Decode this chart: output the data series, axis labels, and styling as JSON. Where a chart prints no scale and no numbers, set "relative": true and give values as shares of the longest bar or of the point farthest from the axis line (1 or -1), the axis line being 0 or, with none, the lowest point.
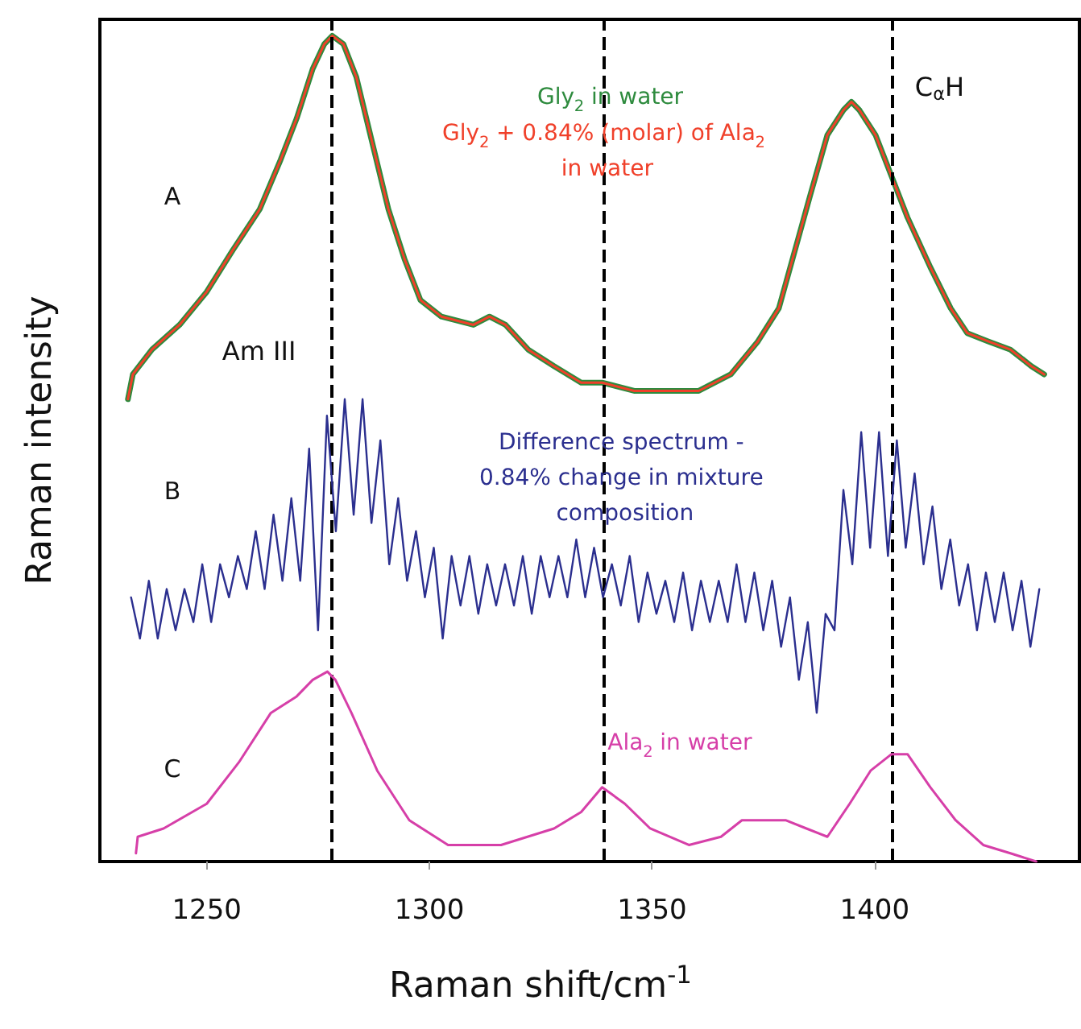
{
  "chart_data": {
    "type": "line",
    "relative": true,
    "xlabel": "Raman shift/cm$^{-1}$",
    "ylabel": "Raman intensity",
    "xlim": [
      1226,
      1446
    ],
    "xticks": [
      1250,
      1300,
      1350,
      1400
    ],
    "grid": false,
    "legend": false,
    "marker": "none",
    "series": [
      {
        "name": "Gly$_{2}$ in water",
        "color": "#2e8b3e",
        "x": [
          1232.3,
          1233.4,
          1237.7,
          1243.9,
          1250,
          1255.8,
          1261.9,
          1266.6,
          1270.2,
          1273.8,
          1276.4,
          1278.2,
          1280.7,
          1283.6,
          1287.2,
          1290.8,
          1294.4,
          1298,
          1302.7,
          1309.9,
          1313.5,
          1317.1,
          1322.2,
          1328,
          1334.1,
          1338.8,
          1346,
          1352.2,
          1360.5,
          1367.7,
          1373.8,
          1378.5,
          1382.1,
          1385.7,
          1389.4,
          1393,
          1394.8,
          1396.6,
          1400.2,
          1403.8,
          1407.4,
          1412.5,
          1417.1,
          1420.8,
          1425.5,
          1430.5,
          1435.2,
          1438.1
        ],
        "values": [
          0.56,
          0.59,
          0.62,
          0.65,
          0.69,
          0.74,
          0.79,
          0.85,
          0.9,
          0.96,
          0.99,
          1,
          0.99,
          0.95,
          0.87,
          0.79,
          0.73,
          0.68,
          0.66,
          0.65,
          0.66,
          0.65,
          0.62,
          0.6,
          0.58,
          0.58,
          0.57,
          0.57,
          0.57,
          0.59,
          0.63,
          0.67,
          0.74,
          0.81,
          0.88,
          0.91,
          0.92,
          0.91,
          0.88,
          0.83,
          0.78,
          0.72,
          0.67,
          0.64,
          0.63,
          0.62,
          0.6,
          0.59
        ]
      },
      {
        "name": "Gly$_{2}$ + 0.84% (molar) of Ala$_{2}$ in water",
        "color": "#f0402a",
        "x": [
          1232.3,
          1233.4,
          1237.7,
          1243.9,
          1250,
          1255.8,
          1261.9,
          1266.6,
          1270.2,
          1273.8,
          1276.4,
          1278.2,
          1280.7,
          1283.6,
          1287.2,
          1290.8,
          1294.4,
          1298,
          1302.7,
          1309.9,
          1313.5,
          1317.1,
          1322.2,
          1328,
          1334.1,
          1338.8,
          1346,
          1352.2,
          1360.5,
          1367.7,
          1373.8,
          1378.5,
          1382.1,
          1385.7,
          1389.4,
          1393,
          1394.8,
          1396.6,
          1400.2,
          1403.8,
          1407.4,
          1412.5,
          1417.1,
          1420.8,
          1425.5,
          1430.5,
          1435.2,
          1438.1
        ],
        "values": [
          0.56,
          0.59,
          0.62,
          0.65,
          0.69,
          0.74,
          0.79,
          0.85,
          0.9,
          0.96,
          0.99,
          1,
          0.99,
          0.95,
          0.87,
          0.79,
          0.73,
          0.68,
          0.66,
          0.65,
          0.66,
          0.65,
          0.62,
          0.6,
          0.58,
          0.58,
          0.57,
          0.57,
          0.57,
          0.59,
          0.63,
          0.67,
          0.74,
          0.81,
          0.88,
          0.91,
          0.92,
          0.91,
          0.88,
          0.83,
          0.78,
          0.72,
          0.67,
          0.64,
          0.63,
          0.62,
          0.6,
          0.59
        ]
      },
      {
        "name": "Difference spectrum - 0.84% change in mixture composition",
        "color": "#2b2f8f",
        "x": [
          1233,
          1235,
          1237,
          1239,
          1241,
          1243,
          1245,
          1247,
          1249,
          1251,
          1253,
          1255,
          1257,
          1259,
          1261,
          1263,
          1265,
          1267,
          1269,
          1271,
          1273,
          1275,
          1277,
          1279,
          1281,
          1283,
          1285,
          1287,
          1289,
          1291,
          1293,
          1295,
          1297,
          1299,
          1301,
          1303,
          1305,
          1307,
          1309,
          1311,
          1313,
          1315,
          1317,
          1319,
          1321,
          1323,
          1325,
          1327,
          1329,
          1331,
          1333,
          1335,
          1337,
          1339,
          1341,
          1343,
          1345,
          1347,
          1349,
          1351,
          1353,
          1355,
          1357,
          1359,
          1361,
          1363,
          1365,
          1367,
          1369,
          1371,
          1373,
          1375,
          1377,
          1379,
          1381,
          1383,
          1385,
          1387,
          1389,
          1391,
          1393,
          1395,
          1397,
          1399,
          1401,
          1403,
          1405,
          1407,
          1409,
          1411,
          1413,
          1415,
          1417,
          1419,
          1421,
          1423,
          1425,
          1427,
          1429,
          1431,
          1433,
          1435,
          1437
        ],
        "values": [
          0.32,
          0.27,
          0.34,
          0.27,
          0.33,
          0.28,
          0.33,
          0.29,
          0.36,
          0.29,
          0.36,
          0.32,
          0.37,
          0.33,
          0.4,
          0.33,
          0.42,
          0.34,
          0.44,
          0.34,
          0.5,
          0.28,
          0.54,
          0.4,
          0.56,
          0.42,
          0.56,
          0.41,
          0.51,
          0.36,
          0.44,
          0.34,
          0.4,
          0.32,
          0.38,
          0.27,
          0.37,
          0.31,
          0.37,
          0.3,
          0.36,
          0.31,
          0.36,
          0.31,
          0.37,
          0.3,
          0.37,
          0.32,
          0.37,
          0.32,
          0.39,
          0.32,
          0.38,
          0.32,
          0.36,
          0.31,
          0.37,
          0.29,
          0.35,
          0.3,
          0.34,
          0.29,
          0.35,
          0.28,
          0.34,
          0.29,
          0.34,
          0.29,
          0.36,
          0.29,
          0.35,
          0.28,
          0.34,
          0.26,
          0.32,
          0.22,
          0.29,
          0.18,
          0.3,
          0.28,
          0.45,
          0.36,
          0.52,
          0.38,
          0.52,
          0.37,
          0.51,
          0.38,
          0.47,
          0.36,
          0.43,
          0.33,
          0.39,
          0.31,
          0.36,
          0.28,
          0.35,
          0.29,
          0.35,
          0.28,
          0.34,
          0.26,
          0.33
        ]
      },
      {
        "name": "Ala$_{2}$ in water",
        "color": "#d63fa8",
        "x": [
          1234.1,
          1234.5,
          1240.3,
          1250,
          1257.2,
          1264.4,
          1270.2,
          1273.8,
          1277.1,
          1278.9,
          1282.5,
          1288.3,
          1295.5,
          1304.2,
          1316.1,
          1328,
          1334.1,
          1338.8,
          1343.9,
          1349.6,
          1358.3,
          1365.5,
          1370.2,
          1380,
          1384.7,
          1389.4,
          1394.4,
          1399.1,
          1403.8,
          1407.4,
          1412.5,
          1418.2,
          1424.4,
          1430.5,
          1436.3
        ],
        "values": [
          0.01,
          0.03,
          0.04,
          0.07,
          0.12,
          0.18,
          0.2,
          0.22,
          0.23,
          0.22,
          0.18,
          0.11,
          0.05,
          0.02,
          0.02,
          0.04,
          0.06,
          0.09,
          0.07,
          0.04,
          0.02,
          0.03,
          0.05,
          0.05,
          0.04,
          0.03,
          0.07,
          0.11,
          0.13,
          0.13,
          0.09,
          0.05,
          0.02,
          0.01,
          0.0
        ]
      }
    ],
    "ref_lines": [
      {
        "axis": "x",
        "value": 1278,
        "label": "Am III",
        "color": "#000000",
        "line_style": "dashed"
      },
      {
        "axis": "x",
        "value": 1339,
        "color": "#000000",
        "line_style": "dashed"
      },
      {
        "axis": "x",
        "value": 1404,
        "label": "C$_{α}$H",
        "color": "#000000",
        "line_style": "dashed"
      }
    ],
    "annotations": [
      "A",
      "B",
      "C"
    ]
  }
}
